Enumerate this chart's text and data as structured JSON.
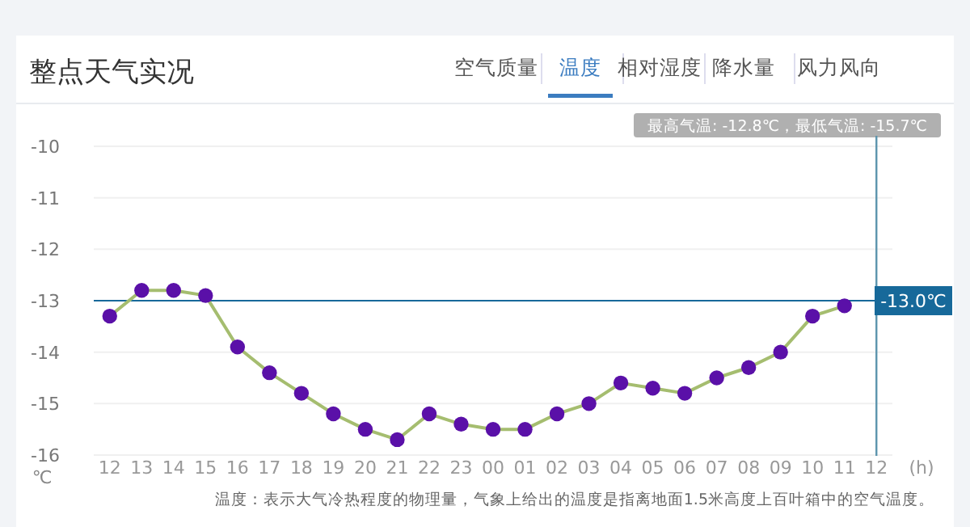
{
  "chart_data": {
    "type": "line",
    "title": "整点天气实况",
    "x": [
      12,
      13,
      14,
      15,
      16,
      17,
      18,
      19,
      20,
      21,
      22,
      23,
      24,
      25,
      26,
      27,
      28,
      29,
      30,
      31,
      32,
      33,
      34,
      35
    ],
    "series": [
      {
        "color": "#5a10a8",
        "values": [
          -13.3,
          -12.8,
          -12.8,
          -12.9,
          -13.9,
          -14.4,
          -14.8,
          -15.2,
          -15.5,
          -15.7,
          -15.2,
          -15.4,
          -15.5,
          -15.5,
          -15.2,
          -15.0,
          -14.6,
          -14.7,
          -14.8,
          -14.5,
          -14.3,
          -14.0,
          -13.3,
          -13.1
        ]
      }
    ],
    "xlim": [
      11.5,
      36.5
    ],
    "ylim": [
      -16,
      -10
    ],
    "xticks": [
      {
        "value": 12,
        "label": "12"
      },
      {
        "value": 13,
        "label": "13"
      },
      {
        "value": 14,
        "label": "14"
      },
      {
        "value": 15,
        "label": "15"
      },
      {
        "value": 16,
        "label": "16"
      },
      {
        "value": 17,
        "label": "17"
      },
      {
        "value": 18,
        "label": "18"
      },
      {
        "value": 19,
        "label": "19"
      },
      {
        "value": 20,
        "label": "20"
      },
      {
        "value": 21,
        "label": "21"
      },
      {
        "value": 22,
        "label": "22"
      },
      {
        "value": 23,
        "label": "23"
      },
      {
        "value": 24,
        "label": "00"
      },
      {
        "value": 25,
        "label": "01"
      },
      {
        "value": 26,
        "label": "02"
      },
      {
        "value": 27,
        "label": "03"
      },
      {
        "value": 28,
        "label": "04"
      },
      {
        "value": 29,
        "label": "05"
      },
      {
        "value": 30,
        "label": "06"
      },
      {
        "value": 31,
        "label": "07"
      },
      {
        "value": 32,
        "label": "08"
      },
      {
        "value": 33,
        "label": "09"
      },
      {
        "value": 34,
        "label": "10"
      },
      {
        "value": 35,
        "label": "11"
      },
      {
        "value": 36,
        "label": "12"
      }
    ],
    "yticks": [
      -10,
      -11,
      -12,
      -13,
      -14,
      -15,
      -16
    ],
    "xlabel": "(h)",
    "ylabel": "℃",
    "grid": "y",
    "marker": "circle",
    "line_style": "solid",
    "ref_lines": [
      {
        "axis": "y",
        "value": -13.0,
        "label": "-13.0℃",
        "color": "#17699a"
      },
      {
        "axis": "x",
        "value": 36,
        "color": "#5c94ad"
      }
    ],
    "annotations": [
      "空气质量",
      "温度",
      "相对湿度",
      "降水量",
      "风力风向",
      "最高气温: -12.8℃，最低气温: -15.7℃",
      "温度：表示大气冷热程度的物理量，气象上给出的温度是指离地面1.5米高度上百叶箱中的空气温度。"
    ]
  }
}
